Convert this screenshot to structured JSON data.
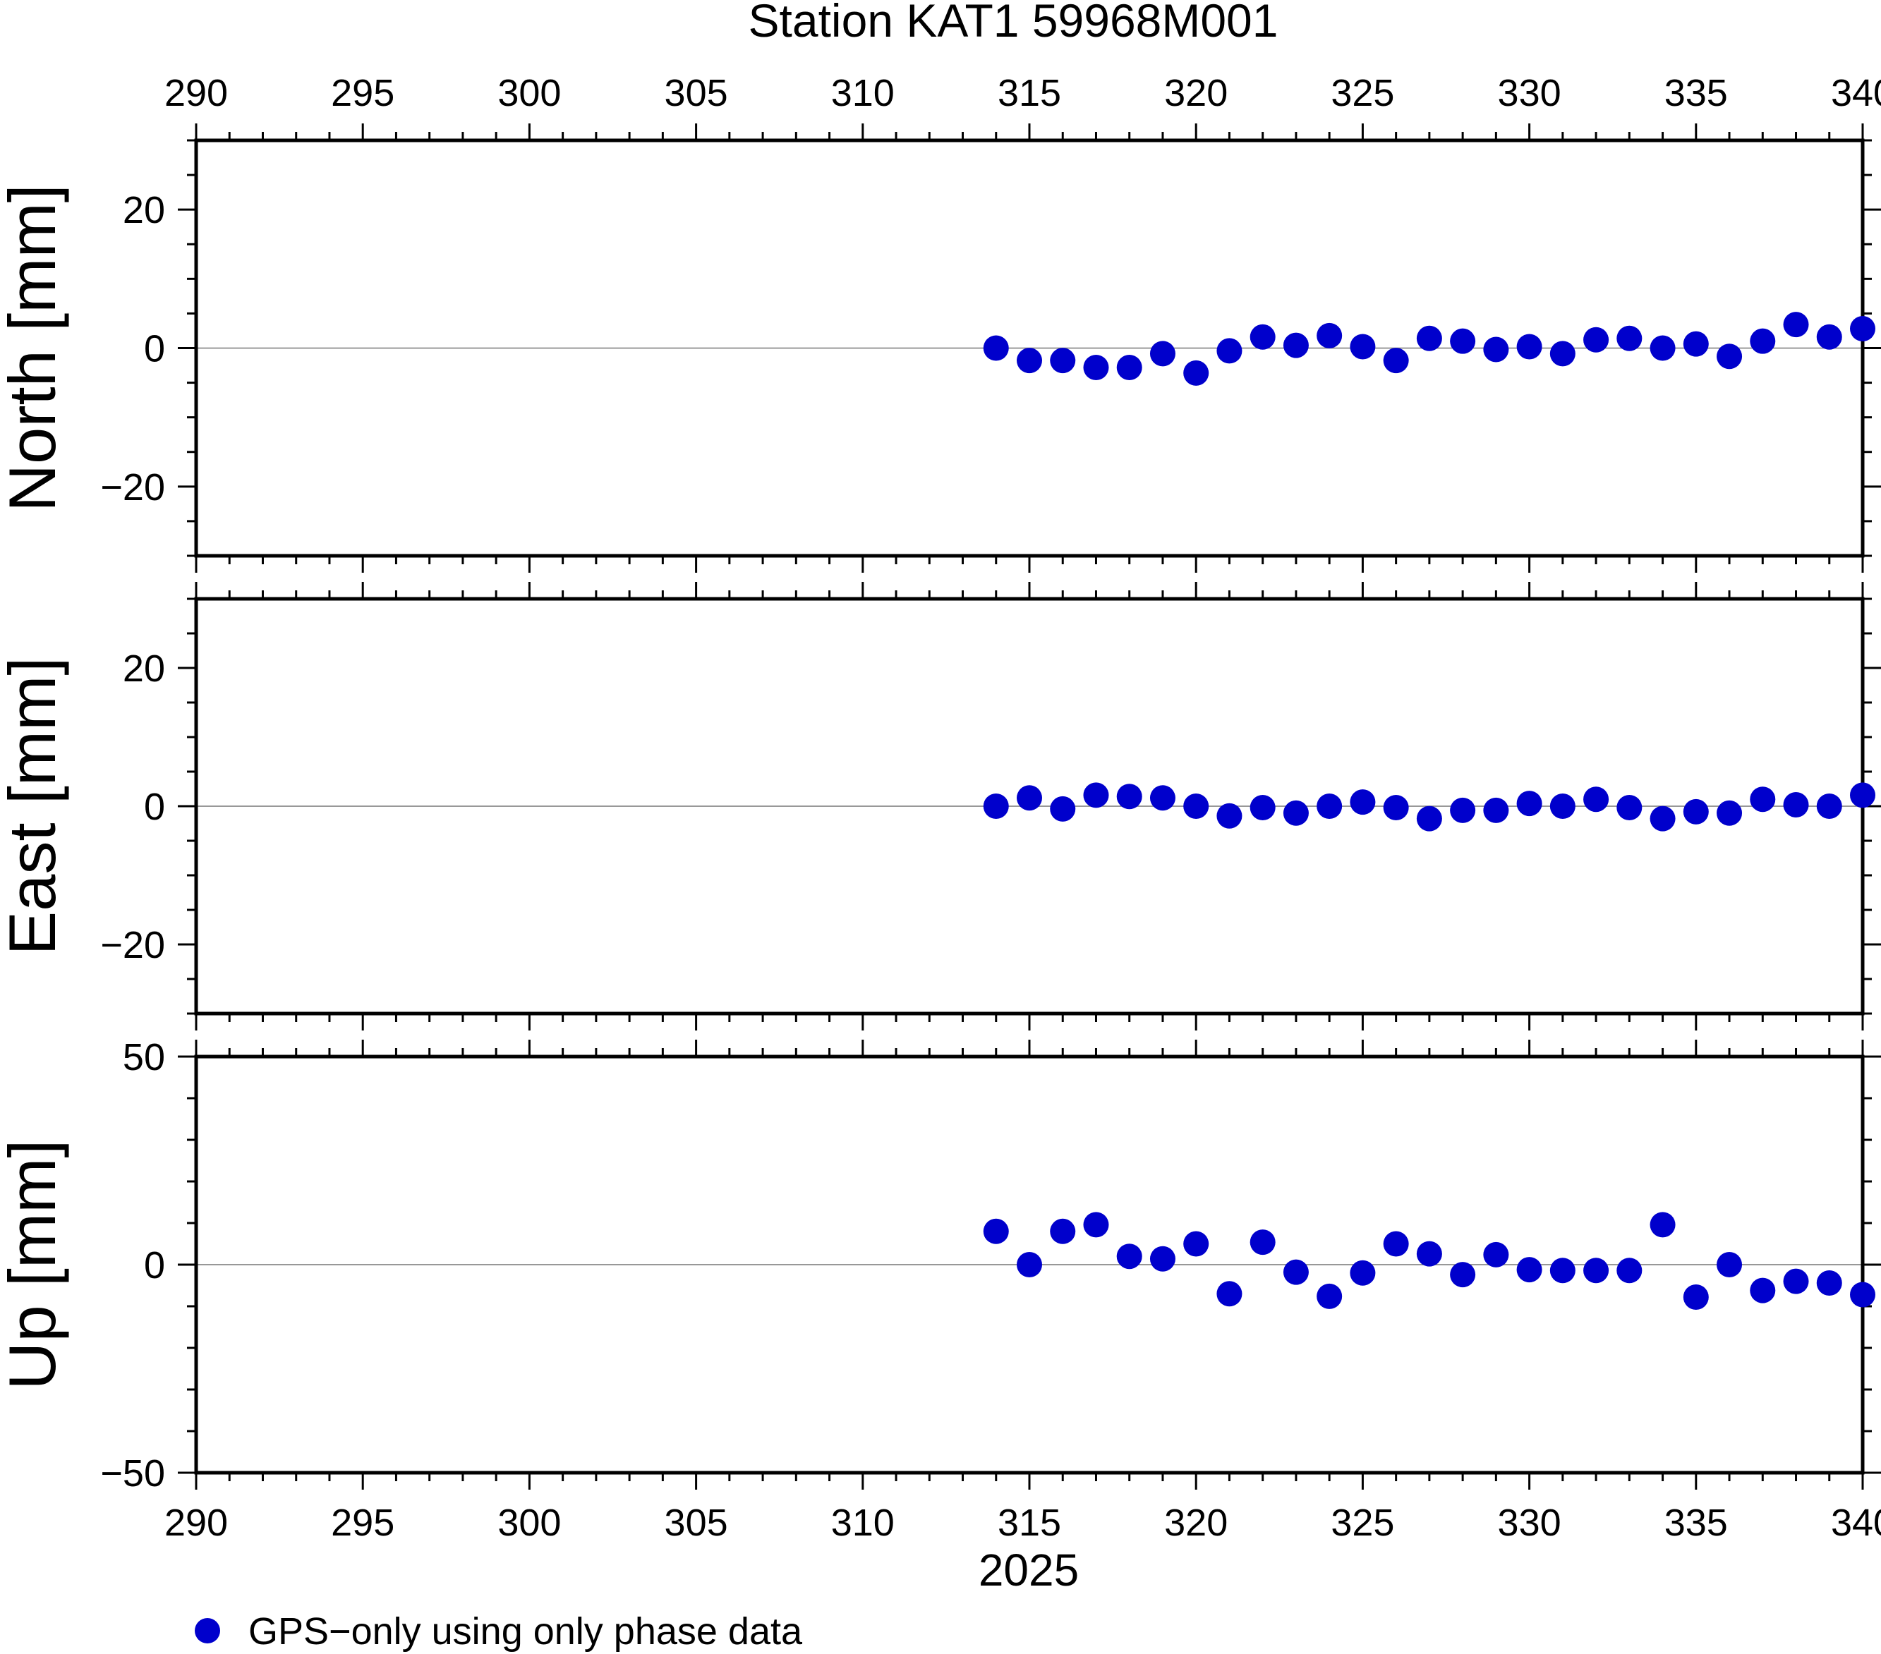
{
  "chart_data": {
    "type": "scatter",
    "title": "Station KAT1 59968M001",
    "xlabel": "2025",
    "xlim": [
      290,
      340
    ],
    "x_ticks": [
      290,
      295,
      300,
      305,
      310,
      315,
      320,
      325,
      330,
      335,
      340
    ],
    "x_ticks_top": true,
    "x_ticks_bottom": true,
    "grid": false,
    "zero_line": true,
    "marker_color": "#0000cc",
    "legend": {
      "placement": "bottom-left",
      "entries": [
        {
          "label": "GPS−only using only phase data",
          "color": "#0000cc",
          "marker": "circle"
        }
      ]
    },
    "x": [
      314,
      315,
      316,
      317,
      318,
      319,
      320,
      321,
      322,
      323,
      324,
      325,
      326,
      327,
      328,
      329,
      330,
      331,
      332,
      333,
      334,
      335,
      336,
      337,
      338,
      339,
      340
    ],
    "panels": [
      {
        "ylabel": "North [mm]",
        "ylim": [
          -30,
          30
        ],
        "y_ticks": [
          -20,
          0,
          20
        ],
        "y_tick_labels": [
          "−20",
          "0",
          "20"
        ],
        "y_minor_step": 5,
        "values": [
          0,
          -1.8,
          -1.8,
          -2.8,
          -2.8,
          -0.8,
          -3.6,
          -0.4,
          1.6,
          0.4,
          1.8,
          0.2,
          -1.8,
          1.4,
          1.0,
          -0.2,
          0.2,
          -0.8,
          1.2,
          1.4,
          0,
          0.6,
          -1.2,
          1.0,
          3.4,
          1.6,
          2.8
        ]
      },
      {
        "ylabel": "East [mm]",
        "ylim": [
          -30,
          30
        ],
        "y_ticks": [
          -20,
          0,
          20
        ],
        "y_tick_labels": [
          "−20",
          "0",
          "20"
        ],
        "y_minor_step": 5,
        "values": [
          0,
          1.2,
          -0.4,
          1.6,
          1.4,
          1.2,
          0,
          -1.4,
          -0.2,
          -1.0,
          0,
          0.6,
          -0.2,
          -1.8,
          -0.6,
          -0.6,
          0.4,
          0,
          1.0,
          -0.2,
          -1.8,
          -0.8,
          -1.0,
          1.0,
          0.2,
          0,
          1.6
        ]
      },
      {
        "ylabel": "Up [mm]",
        "ylim": [
          -50,
          50
        ],
        "y_ticks": [
          -50,
          0,
          50
        ],
        "y_tick_labels": [
          "−50",
          "0",
          "50"
        ],
        "y_minor_step": 10,
        "values": [
          8,
          0,
          8,
          9.6,
          2,
          1.4,
          5,
          -7,
          5.4,
          -1.8,
          -7.6,
          -2,
          5,
          2.6,
          -2.4,
          2.4,
          -1.2,
          -1.4,
          -1.4,
          -1.4,
          9.6,
          -7.8,
          0,
          -6.2,
          -4,
          -4.4,
          -7.2
        ]
      }
    ]
  }
}
